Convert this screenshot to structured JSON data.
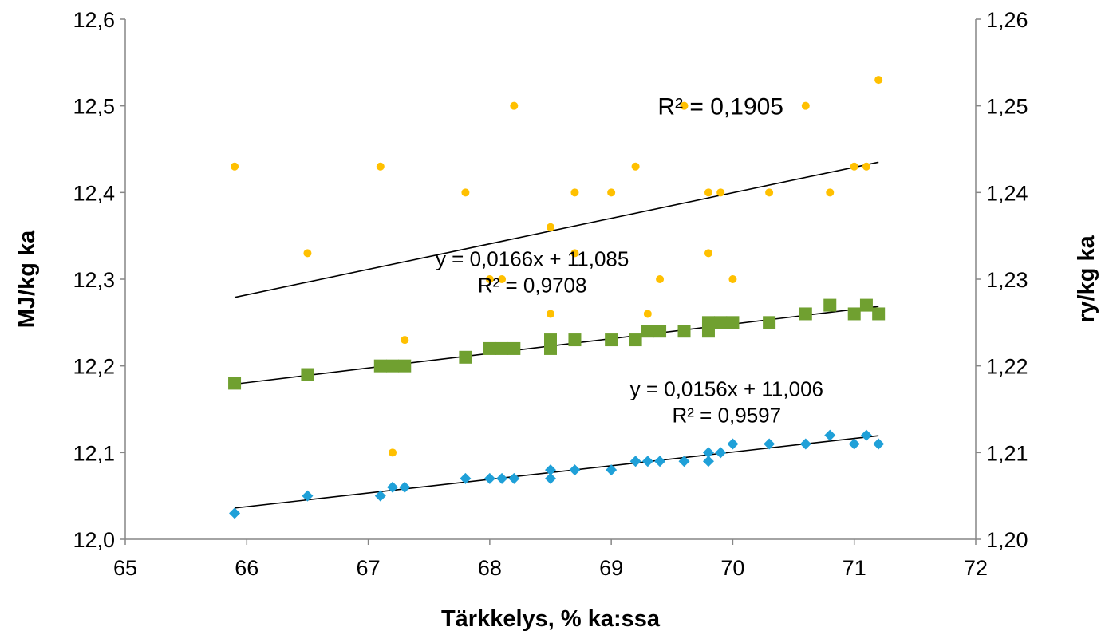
{
  "chart_data": {
    "type": "scatter",
    "xlabel": "Tärkkelys, % ka:ssa",
    "ylabel": "MJ/kg ka",
    "y2label": "ry/kg ka",
    "xlim": [
      65,
      72
    ],
    "ylim": [
      12.0,
      12.6
    ],
    "y2lim": [
      1.2,
      1.26
    ],
    "x_ticks": [
      "65",
      "66",
      "67",
      "68",
      "69",
      "70",
      "71",
      "72"
    ],
    "y_ticks": [
      "12,0",
      "12,1",
      "12,2",
      "12,3",
      "12,4",
      "12,5",
      "12,6"
    ],
    "y2_ticks": [
      "1,20",
      "1,21",
      "1,22",
      "1,23",
      "1,24",
      "1,25",
      "1,26"
    ],
    "grid": false,
    "legend": "none",
    "series": [
      {
        "marker": "circle",
        "color": "#FFC000",
        "axis": "right",
        "points": [
          [
            65.9,
            1.243
          ],
          [
            66.5,
            1.233
          ],
          [
            67.1,
            1.243
          ],
          [
            67.2,
            1.21
          ],
          [
            67.3,
            1.223
          ],
          [
            67.8,
            1.24
          ],
          [
            68.0,
            1.23
          ],
          [
            68.1,
            1.23
          ],
          [
            68.2,
            1.25
          ],
          [
            68.5,
            1.236
          ],
          [
            68.5,
            1.226
          ],
          [
            68.7,
            1.24
          ],
          [
            68.7,
            1.233
          ],
          [
            69.0,
            1.24
          ],
          [
            69.2,
            1.243
          ],
          [
            69.3,
            1.226
          ],
          [
            69.4,
            1.23
          ],
          [
            69.6,
            1.25
          ],
          [
            69.8,
            1.24
          ],
          [
            69.8,
            1.233
          ],
          [
            69.9,
            1.24
          ],
          [
            70.0,
            1.23
          ],
          [
            70.3,
            1.24
          ],
          [
            70.6,
            1.25
          ],
          [
            70.8,
            1.24
          ],
          [
            71.0,
            1.243
          ],
          [
            71.1,
            1.243
          ],
          [
            71.2,
            1.253
          ]
        ],
        "trendline": {
          "x": [
            65.9,
            71.2
          ],
          "y": [
            1.2279,
            1.2435
          ]
        }
      },
      {
        "marker": "square",
        "color": "#70A030",
        "axis": "left",
        "points": [
          [
            65.9,
            12.18
          ],
          [
            66.5,
            12.19
          ],
          [
            67.1,
            12.2
          ],
          [
            67.2,
            12.2
          ],
          [
            67.3,
            12.2
          ],
          [
            67.8,
            12.21
          ],
          [
            68.0,
            12.22
          ],
          [
            68.1,
            12.22
          ],
          [
            68.2,
            12.22
          ],
          [
            68.5,
            12.23
          ],
          [
            68.5,
            12.22
          ],
          [
            68.7,
            12.23
          ],
          [
            69.0,
            12.23
          ],
          [
            69.2,
            12.23
          ],
          [
            69.3,
            12.24
          ],
          [
            69.4,
            12.24
          ],
          [
            69.6,
            12.24
          ],
          [
            69.8,
            12.25
          ],
          [
            69.8,
            12.24
          ],
          [
            69.9,
            12.25
          ],
          [
            70.0,
            12.25
          ],
          [
            70.3,
            12.25
          ],
          [
            70.6,
            12.26
          ],
          [
            70.8,
            12.27
          ],
          [
            71.0,
            12.26
          ],
          [
            71.1,
            12.27
          ],
          [
            71.2,
            12.26
          ]
        ],
        "trendline": {
          "x": [
            65.9,
            71.2
          ],
          "y": [
            12.179,
            12.2685
          ]
        }
      },
      {
        "marker": "diamond",
        "color": "#1FA0D8",
        "axis": "left",
        "points": [
          [
            65.9,
            12.03
          ],
          [
            66.5,
            12.05
          ],
          [
            67.1,
            12.05
          ],
          [
            67.2,
            12.06
          ],
          [
            67.3,
            12.06
          ],
          [
            67.8,
            12.07
          ],
          [
            68.0,
            12.07
          ],
          [
            68.1,
            12.07
          ],
          [
            68.2,
            12.07
          ],
          [
            68.5,
            12.08
          ],
          [
            68.5,
            12.07
          ],
          [
            68.7,
            12.08
          ],
          [
            69.0,
            12.08
          ],
          [
            69.2,
            12.09
          ],
          [
            69.3,
            12.09
          ],
          [
            69.4,
            12.09
          ],
          [
            69.6,
            12.09
          ],
          [
            69.8,
            12.1
          ],
          [
            69.8,
            12.09
          ],
          [
            69.9,
            12.1
          ],
          [
            70.0,
            12.11
          ],
          [
            70.3,
            12.11
          ],
          [
            70.6,
            12.11
          ],
          [
            70.8,
            12.12
          ],
          [
            71.0,
            12.11
          ],
          [
            71.1,
            12.12
          ],
          [
            71.2,
            12.11
          ]
        ],
        "trendline": {
          "x": [
            65.9,
            71.2
          ],
          "y": [
            12.036,
            12.1195
          ]
        }
      }
    ],
    "annotations": [
      {
        "text": "R² = 0,1905",
        "x": 69.9,
        "y": 12.49,
        "size": "big"
      },
      {
        "text": "y = 0,0166x + 11,085",
        "x": 68.35,
        "y": 12.315,
        "size": "normal"
      },
      {
        "text": "R² = 0,9708",
        "x": 68.35,
        "y": 12.285,
        "size": "normal"
      },
      {
        "text": "y = 0,0156x + 11,006",
        "x": 69.95,
        "y": 12.165,
        "size": "normal"
      },
      {
        "text": "R² = 0,9597",
        "x": 69.95,
        "y": 12.135,
        "size": "normal"
      }
    ]
  }
}
